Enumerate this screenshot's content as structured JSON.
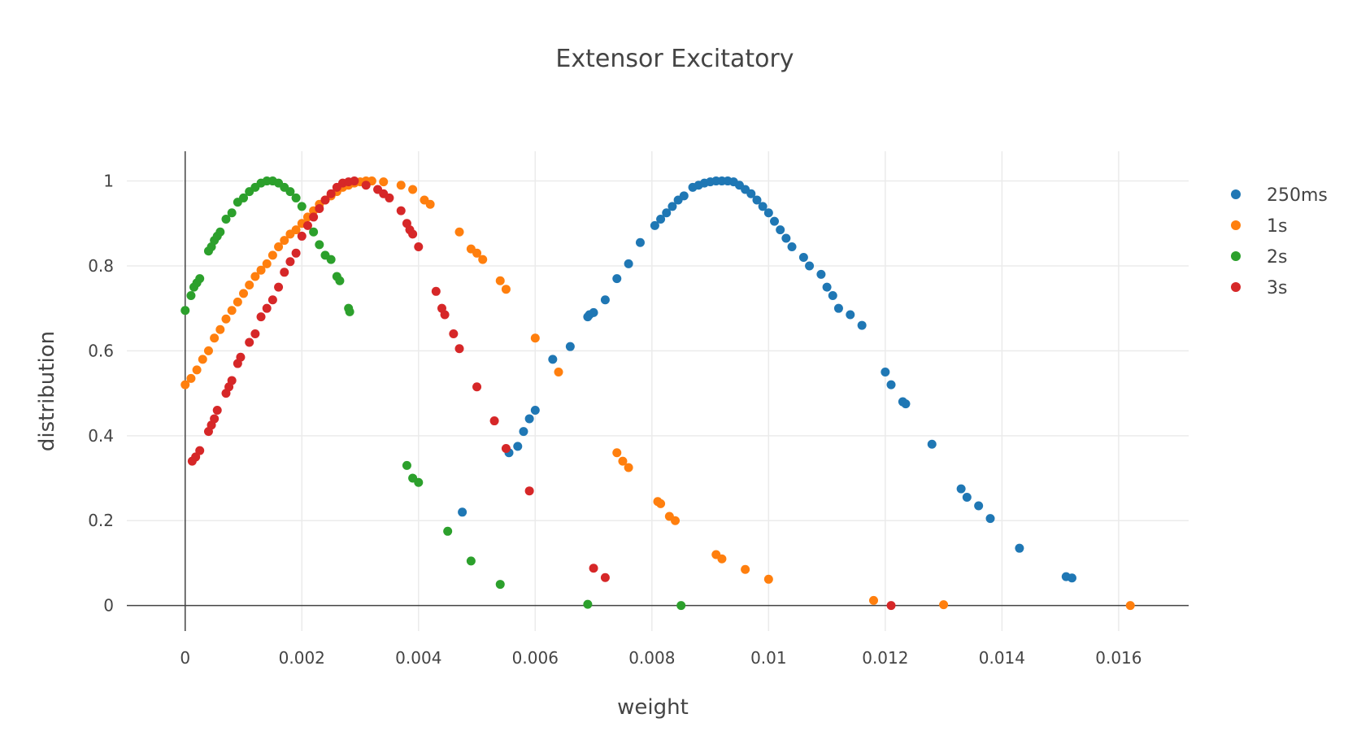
{
  "chart_data": {
    "type": "scatter",
    "title": "Extensor Excitatory",
    "xlabel": "weight",
    "ylabel": "distribution",
    "xlim": [
      -0.001,
      0.0172
    ],
    "ylim": [
      -0.06,
      1.07
    ],
    "x_ticks": [
      0,
      0.002,
      0.004,
      0.006,
      0.008,
      0.01,
      0.012,
      0.014,
      0.016
    ],
    "x_tick_labels": [
      "0",
      "0.002",
      "0.004",
      "0.006",
      "0.008",
      "0.01",
      "0.012",
      "0.014",
      "0.016"
    ],
    "y_ticks": [
      0,
      0.2,
      0.4,
      0.6,
      0.8,
      1
    ],
    "y_tick_labels": [
      "0",
      "0.2",
      "0.4",
      "0.6",
      "0.8",
      "1"
    ],
    "grid": true,
    "legend_position": "right",
    "series": [
      {
        "name": "250ms",
        "color": "#1f77b4",
        "points": [
          [
            0.00475,
            0.22
          ],
          [
            0.00555,
            0.36
          ],
          [
            0.0057,
            0.375
          ],
          [
            0.0058,
            0.41
          ],
          [
            0.0059,
            0.44
          ],
          [
            0.006,
            0.46
          ],
          [
            0.0063,
            0.58
          ],
          [
            0.0066,
            0.61
          ],
          [
            0.0069,
            0.68
          ],
          [
            0.00693,
            0.685
          ],
          [
            0.007,
            0.69
          ],
          [
            0.0072,
            0.72
          ],
          [
            0.0074,
            0.77
          ],
          [
            0.0076,
            0.805
          ],
          [
            0.0078,
            0.855
          ],
          [
            0.00805,
            0.895
          ],
          [
            0.00815,
            0.91
          ],
          [
            0.00825,
            0.925
          ],
          [
            0.00835,
            0.94
          ],
          [
            0.00845,
            0.955
          ],
          [
            0.00855,
            0.965
          ],
          [
            0.0087,
            0.985
          ],
          [
            0.0088,
            0.99
          ],
          [
            0.0089,
            0.995
          ],
          [
            0.009,
            0.998
          ],
          [
            0.0091,
            1.0
          ],
          [
            0.0092,
            1.0
          ],
          [
            0.0093,
            1.0
          ],
          [
            0.0094,
            0.998
          ],
          [
            0.0095,
            0.99
          ],
          [
            0.0096,
            0.98
          ],
          [
            0.0097,
            0.97
          ],
          [
            0.0098,
            0.955
          ],
          [
            0.0099,
            0.94
          ],
          [
            0.01,
            0.925
          ],
          [
            0.0101,
            0.905
          ],
          [
            0.0102,
            0.885
          ],
          [
            0.0103,
            0.865
          ],
          [
            0.0104,
            0.845
          ],
          [
            0.0106,
            0.82
          ],
          [
            0.0107,
            0.8
          ],
          [
            0.0109,
            0.78
          ],
          [
            0.011,
            0.75
          ],
          [
            0.0111,
            0.73
          ],
          [
            0.0112,
            0.7
          ],
          [
            0.0114,
            0.685
          ],
          [
            0.0116,
            0.66
          ],
          [
            0.012,
            0.55
          ],
          [
            0.0121,
            0.52
          ],
          [
            0.0123,
            0.48
          ],
          [
            0.01235,
            0.475
          ],
          [
            0.0128,
            0.38
          ],
          [
            0.0133,
            0.275
          ],
          [
            0.0134,
            0.255
          ],
          [
            0.0136,
            0.235
          ],
          [
            0.0138,
            0.205
          ],
          [
            0.0143,
            0.135
          ],
          [
            0.0151,
            0.068
          ],
          [
            0.0152,
            0.065
          ]
        ]
      },
      {
        "name": "1s",
        "color": "#ff7f0e",
        "points": [
          [
            0.0,
            0.52
          ],
          [
            0.0001,
            0.535
          ],
          [
            0.0002,
            0.555
          ],
          [
            0.0003,
            0.58
          ],
          [
            0.0004,
            0.6
          ],
          [
            0.0005,
            0.63
          ],
          [
            0.0006,
            0.65
          ],
          [
            0.0007,
            0.675
          ],
          [
            0.0008,
            0.695
          ],
          [
            0.0009,
            0.715
          ],
          [
            0.001,
            0.735
          ],
          [
            0.0011,
            0.755
          ],
          [
            0.0012,
            0.775
          ],
          [
            0.0013,
            0.79
          ],
          [
            0.0014,
            0.805
          ],
          [
            0.0015,
            0.825
          ],
          [
            0.0016,
            0.845
          ],
          [
            0.0017,
            0.86
          ],
          [
            0.0018,
            0.875
          ],
          [
            0.0019,
            0.885
          ],
          [
            0.002,
            0.9
          ],
          [
            0.0021,
            0.915
          ],
          [
            0.0022,
            0.93
          ],
          [
            0.0023,
            0.945
          ],
          [
            0.0024,
            0.955
          ],
          [
            0.0025,
            0.965
          ],
          [
            0.0026,
            0.975
          ],
          [
            0.0027,
            0.985
          ],
          [
            0.0028,
            0.99
          ],
          [
            0.0029,
            0.995
          ],
          [
            0.003,
            0.998
          ],
          [
            0.0031,
            1.0
          ],
          [
            0.0032,
            1.0
          ],
          [
            0.0034,
            0.998
          ],
          [
            0.0037,
            0.99
          ],
          [
            0.0039,
            0.98
          ],
          [
            0.0041,
            0.955
          ],
          [
            0.0042,
            0.945
          ],
          [
            0.0047,
            0.88
          ],
          [
            0.0049,
            0.84
          ],
          [
            0.005,
            0.83
          ],
          [
            0.0051,
            0.815
          ],
          [
            0.0054,
            0.765
          ],
          [
            0.0055,
            0.745
          ],
          [
            0.006,
            0.63
          ],
          [
            0.0064,
            0.55
          ],
          [
            0.0074,
            0.36
          ],
          [
            0.0075,
            0.34
          ],
          [
            0.0076,
            0.325
          ],
          [
            0.0081,
            0.245
          ],
          [
            0.00815,
            0.24
          ],
          [
            0.0083,
            0.21
          ],
          [
            0.0084,
            0.2
          ],
          [
            0.0091,
            0.12
          ],
          [
            0.0092,
            0.11
          ],
          [
            0.0096,
            0.085
          ],
          [
            0.01,
            0.062
          ],
          [
            0.0118,
            0.012
          ],
          [
            0.013,
            0.002
          ],
          [
            0.0162,
            0.0
          ]
        ]
      },
      {
        "name": "2s",
        "color": "#2ca02c",
        "points": [
          [
            0.0,
            0.695
          ],
          [
            0.0001,
            0.73
          ],
          [
            0.00015,
            0.75
          ],
          [
            0.0002,
            0.76
          ],
          [
            0.00025,
            0.77
          ],
          [
            0.0004,
            0.835
          ],
          [
            0.00045,
            0.845
          ],
          [
            0.0005,
            0.86
          ],
          [
            0.00055,
            0.87
          ],
          [
            0.0006,
            0.88
          ],
          [
            0.0007,
            0.91
          ],
          [
            0.0008,
            0.925
          ],
          [
            0.0009,
            0.95
          ],
          [
            0.001,
            0.96
          ],
          [
            0.0011,
            0.975
          ],
          [
            0.0012,
            0.985
          ],
          [
            0.0013,
            0.995
          ],
          [
            0.0014,
            1.0
          ],
          [
            0.0015,
            1.0
          ],
          [
            0.0016,
            0.995
          ],
          [
            0.0017,
            0.985
          ],
          [
            0.0018,
            0.975
          ],
          [
            0.0019,
            0.96
          ],
          [
            0.002,
            0.94
          ],
          [
            0.0022,
            0.88
          ],
          [
            0.0023,
            0.85
          ],
          [
            0.0024,
            0.825
          ],
          [
            0.0025,
            0.815
          ],
          [
            0.0026,
            0.775
          ],
          [
            0.00265,
            0.765
          ],
          [
            0.0028,
            0.7
          ],
          [
            0.00282,
            0.692
          ],
          [
            0.0038,
            0.33
          ],
          [
            0.0039,
            0.3
          ],
          [
            0.004,
            0.29
          ],
          [
            0.0045,
            0.175
          ],
          [
            0.0049,
            0.105
          ],
          [
            0.0054,
            0.05
          ],
          [
            0.0069,
            0.003
          ],
          [
            0.0085,
            0.0
          ]
        ]
      },
      {
        "name": "3s",
        "color": "#d62728",
        "points": [
          [
            0.00012,
            0.34
          ],
          [
            0.00018,
            0.35
          ],
          [
            0.00025,
            0.365
          ],
          [
            0.0004,
            0.41
          ],
          [
            0.00045,
            0.425
          ],
          [
            0.0005,
            0.44
          ],
          [
            0.00055,
            0.46
          ],
          [
            0.0007,
            0.5
          ],
          [
            0.00075,
            0.515
          ],
          [
            0.0008,
            0.53
          ],
          [
            0.0009,
            0.57
          ],
          [
            0.00095,
            0.585
          ],
          [
            0.0011,
            0.62
          ],
          [
            0.0012,
            0.64
          ],
          [
            0.0013,
            0.68
          ],
          [
            0.0014,
            0.7
          ],
          [
            0.0015,
            0.72
          ],
          [
            0.0016,
            0.75
          ],
          [
            0.0017,
            0.785
          ],
          [
            0.0018,
            0.81
          ],
          [
            0.0019,
            0.83
          ],
          [
            0.002,
            0.87
          ],
          [
            0.0021,
            0.895
          ],
          [
            0.0022,
            0.915
          ],
          [
            0.0023,
            0.935
          ],
          [
            0.0024,
            0.955
          ],
          [
            0.0025,
            0.97
          ],
          [
            0.0026,
            0.985
          ],
          [
            0.0027,
            0.995
          ],
          [
            0.0028,
            0.998
          ],
          [
            0.0029,
            1.0
          ],
          [
            0.0031,
            0.99
          ],
          [
            0.0033,
            0.98
          ],
          [
            0.0034,
            0.97
          ],
          [
            0.0035,
            0.96
          ],
          [
            0.0037,
            0.93
          ],
          [
            0.0038,
            0.9
          ],
          [
            0.00385,
            0.885
          ],
          [
            0.0039,
            0.875
          ],
          [
            0.004,
            0.845
          ],
          [
            0.0043,
            0.74
          ],
          [
            0.0044,
            0.7
          ],
          [
            0.00445,
            0.685
          ],
          [
            0.0046,
            0.64
          ],
          [
            0.0047,
            0.605
          ],
          [
            0.005,
            0.515
          ],
          [
            0.0053,
            0.435
          ],
          [
            0.0055,
            0.37
          ],
          [
            0.0059,
            0.27
          ],
          [
            0.007,
            0.088
          ],
          [
            0.0072,
            0.066
          ],
          [
            0.0121,
            0.0
          ]
        ]
      }
    ]
  }
}
